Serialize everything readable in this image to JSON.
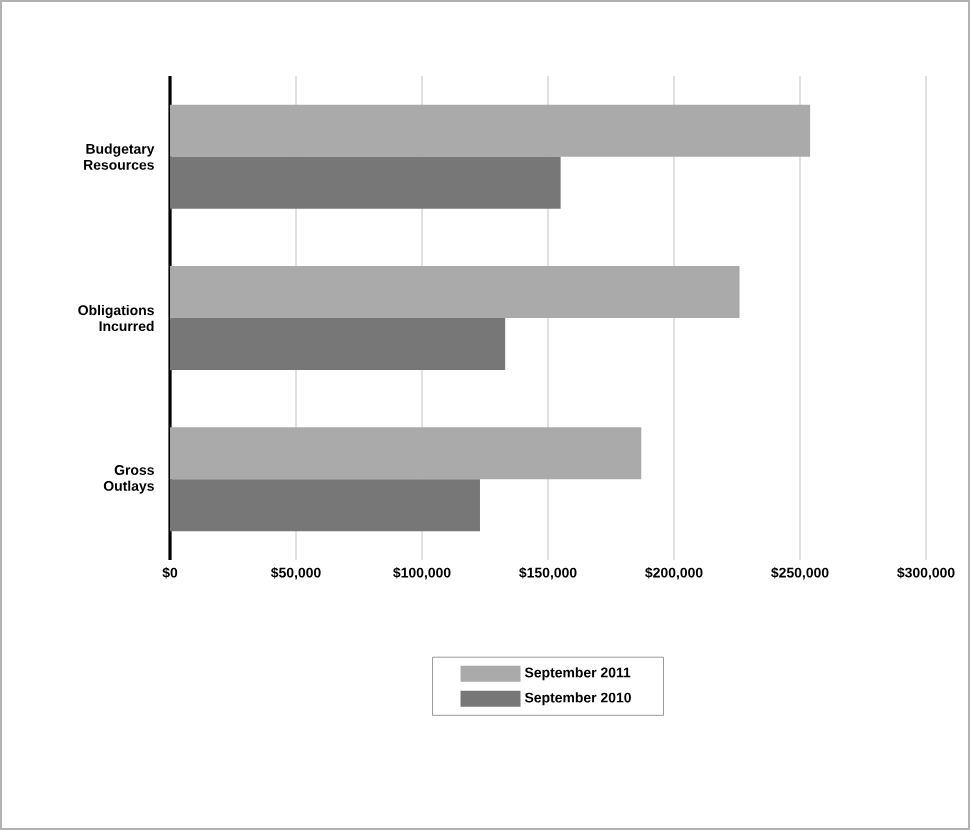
{
  "chart_data": {
    "type": "bar",
    "orientation": "horizontal",
    "categories": [
      "Budgetary Resources",
      "Obligations Incurred",
      "Gross Outlays"
    ],
    "series": [
      {
        "name": "September 2011",
        "color": "#aaaaaa",
        "values": [
          254000,
          226000,
          187000
        ]
      },
      {
        "name": "September 2010",
        "color": "#777777",
        "values": [
          155000,
          133000,
          123000
        ]
      }
    ],
    "xlim": [
      0,
      300000
    ],
    "xticks": [
      {
        "value": 0,
        "label": "$0"
      },
      {
        "value": 50000,
        "label": "$50,000"
      },
      {
        "value": 100000,
        "label": "$100,000"
      },
      {
        "value": 150000,
        "label": "$150,000"
      },
      {
        "value": 200000,
        "label": "$200,000"
      },
      {
        "value": 250000,
        "label": "$250,000"
      },
      {
        "value": 300000,
        "label": "$300,000"
      }
    ],
    "grid": "x",
    "legend": "bottom"
  }
}
